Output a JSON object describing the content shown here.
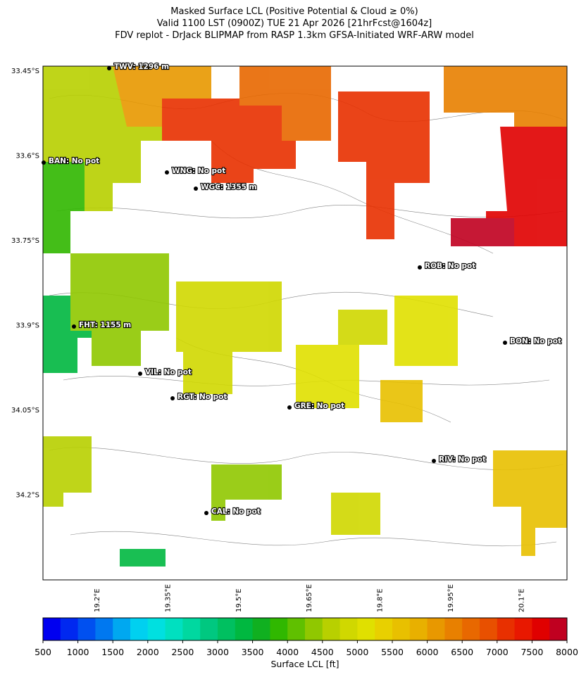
{
  "header": {
    "title_lines": [
      "Masked Surface LCL (Positive Potential & Cloud ≥ 0%)",
      "Valid 1100 LST (0900Z) TUE 21 Apr 2026 [21hrFcst@1604z]",
      "FDV replot - DrJack BLIPMAP from RASP 1.3km GFSA-Initiated WRF-ARW model"
    ]
  },
  "map": {
    "lat_ticks": [
      "33.45°S",
      "33.6°S",
      "33.75°S",
      "33.9°S",
      "34.05°S",
      "34.2°S"
    ],
    "lon_ticks": [
      "19.2°E",
      "19.35°E",
      "19.5°E",
      "19.65°E",
      "19.8°E",
      "19.95°E",
      "20.1°E"
    ],
    "stations": [
      "TWV: 1296 m",
      "BAN: No pot",
      "WNG: No pot",
      "WGC: 1355 m",
      "ROB: No pot",
      "FHT: 1155 m",
      "BON: No pot",
      "VIL: No pot",
      "RGT: No pot",
      "GRE: No pot",
      "RIV: No pot",
      "CAL: No pot"
    ]
  },
  "colorbar": {
    "label": "Surface LCL [ft]",
    "lim": [
      500,
      8000
    ],
    "ticks": [
      500,
      1000,
      1500,
      2000,
      2500,
      3000,
      3500,
      4000,
      4500,
      5000,
      5500,
      6000,
      6500,
      7000,
      7500,
      8000
    ],
    "colors": [
      "#0000f0",
      "#0028f0",
      "#0050f0",
      "#0078f0",
      "#00a8f0",
      "#00d0f0",
      "#00e0e0",
      "#00e0c0",
      "#00d8a0",
      "#00c880",
      "#00c060",
      "#00b840",
      "#10b020",
      "#30b800",
      "#60c000",
      "#90c800",
      "#b8d000",
      "#d0d800",
      "#e0e000",
      "#e8d000",
      "#e8c000",
      "#e8b000",
      "#e89800",
      "#e88000",
      "#e86800",
      "#e85000",
      "#e83000",
      "#e81800",
      "#e00000",
      "#c00020"
    ]
  }
}
